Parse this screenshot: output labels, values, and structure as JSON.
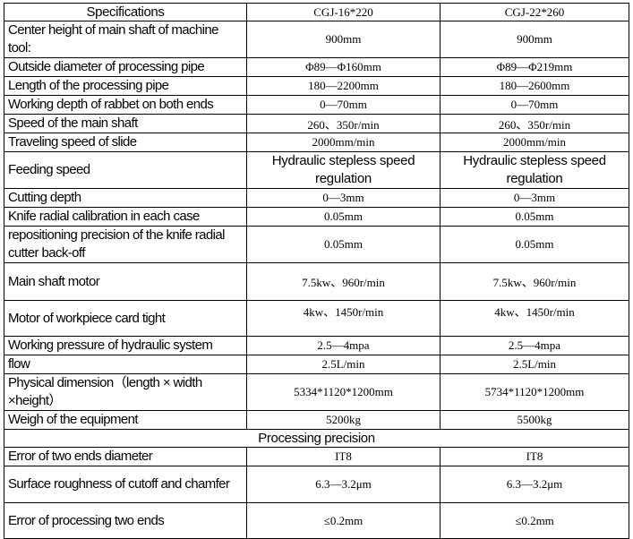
{
  "header": {
    "spec": "Specifications",
    "model1": "CGJ-16*220",
    "model2": "CGJ-22*260"
  },
  "rows": [
    {
      "label": "Center height of main shaft of machine tool:",
      "v1": "900mm",
      "v2": "900mm"
    },
    {
      "label": "Outside diameter of processing pipe",
      "v1": "Φ89—Φ160mm",
      "v2": "Φ89—Φ219mm"
    },
    {
      "label": "Length of the processing pipe",
      "v1": "180—2200mm",
      "v2": "180—2600mm"
    },
    {
      "label": "Working depth of rabbet on both ends",
      "v1": "0—70mm",
      "v2": "0—70mm"
    },
    {
      "label": "Speed of the main shaft",
      "v1": "260、350r/min",
      "v2": "260、350r/min"
    },
    {
      "label": "Traveling speed of slide",
      "v1": "2000mm/min",
      "v2": "2000mm/min"
    },
    {
      "label": "Feeding speed",
      "v1": "Hydraulic stepless speed regulation",
      "v2": "Hydraulic stepless speed regulation"
    },
    {
      "label": "Cutting depth",
      "v1": "0—3mm",
      "v2": "0—3mm"
    },
    {
      "label": "Knife radial calibration in each case",
      "v1": "0.05mm",
      "v2": "0.05mm"
    },
    {
      "label": "repositioning precision of the knife radial cutter back-off",
      "v1": "0.05mm",
      "v2": "0.05mm"
    },
    {
      "label": "Main shaft motor",
      "v1": "7.5kw、960r/min",
      "v2": "7.5kw、960r/min"
    },
    {
      "label": "Motor of workpiece card tight",
      "v1": "4kw、1450r/min",
      "v2": "4kw、1450r/min"
    },
    {
      "label": "Working pressure of hydraulic system",
      "v1": "2.5—4mpa",
      "v2": "2.5—4mpa"
    },
    {
      "label": "flow",
      "v1": "2.5L/min",
      "v2": "2.5L/min"
    },
    {
      "label": "Physical dimension（length × width ×height）",
      "v1": "5334*1120*1200mm",
      "v2": "5734*1120*1200mm"
    },
    {
      "label": "Weigh of the equipment",
      "v1": "5200kg",
      "v2": "5500kg"
    }
  ],
  "section": "Processing precision",
  "precision_rows": [
    {
      "label_a": "Error of two ends",
      "label_b": " diameter",
      "v1": "IT8",
      "v2": "IT8"
    },
    {
      "label": "Surface roughness of cutoff and chamfer",
      "v1": "6.3—3.2μm",
      "v2": "6.3—3.2μm"
    },
    {
      "label": "Error of processing two ends",
      "v1": "≤0.2mm",
      "v2": "≤0.2mm"
    }
  ]
}
